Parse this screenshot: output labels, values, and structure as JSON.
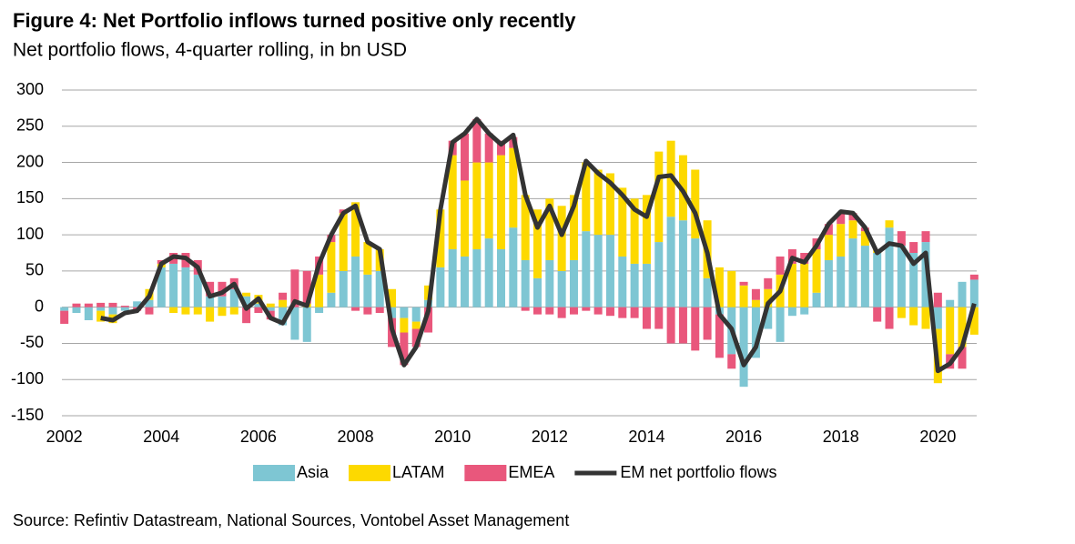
{
  "chart_data": {
    "type": "stacked_bar_line",
    "title": "Figure 4: Net Portfolio inflows turned positive only recently",
    "subtitle": "Net portfolio flows, 4-quarter rolling, in bn USD",
    "source": "Source: Refintiv Datastream, National Sources, Vontobel Asset Management",
    "x": [
      2002,
      2002.25,
      2002.5,
      2002.75,
      2003,
      2003.25,
      2003.5,
      2003.75,
      2004,
      2004.25,
      2004.5,
      2004.75,
      2005,
      2005.25,
      2005.5,
      2005.75,
      2006,
      2006.25,
      2006.5,
      2006.75,
      2007,
      2007.25,
      2007.5,
      2007.75,
      2008,
      2008.25,
      2008.5,
      2008.75,
      2009,
      2009.25,
      2009.5,
      2009.75,
      2010,
      2010.25,
      2010.5,
      2010.75,
      2011,
      2011.25,
      2011.5,
      2011.75,
      2012,
      2012.25,
      2012.5,
      2012.75,
      2013,
      2013.25,
      2013.5,
      2013.75,
      2014,
      2014.25,
      2014.5,
      2014.75,
      2015,
      2015.25,
      2015.5,
      2015.75,
      2016,
      2016.25,
      2016.5,
      2016.75,
      2017,
      2017.25,
      2017.5,
      2017.75,
      2018,
      2018.25,
      2018.5,
      2018.75,
      2019,
      2019.25,
      2019.5,
      2019.75,
      2020,
      2020.25,
      2020.5,
      2020.75
    ],
    "xlim": [
      2001.95,
      2020.8
    ],
    "xticks": [
      2002,
      2004,
      2006,
      2008,
      2010,
      2012,
      2014,
      2016,
      2018,
      2020
    ],
    "ylim": [
      -150,
      300
    ],
    "yticks": [
      -150,
      -100,
      -50,
      0,
      50,
      100,
      150,
      200,
      250,
      300
    ],
    "grid": true,
    "series": [
      {
        "name": "Asia",
        "color": "#7ec6d3",
        "values": [
          -5,
          -8,
          -18,
          -5,
          -10,
          -5,
          8,
          10,
          55,
          60,
          55,
          45,
          15,
          15,
          25,
          15,
          5,
          -5,
          -25,
          -45,
          -48,
          -8,
          20,
          50,
          70,
          45,
          50,
          -15,
          -15,
          -20,
          10,
          55,
          80,
          70,
          80,
          95,
          80,
          110,
          65,
          40,
          65,
          50,
          65,
          105,
          100,
          100,
          70,
          60,
          60,
          90,
          125,
          120,
          95,
          40,
          -10,
          -65,
          -110,
          -70,
          -30,
          -48,
          -12,
          -10,
          20,
          65,
          70,
          95,
          85,
          75,
          110,
          85,
          75,
          90,
          -30,
          10,
          35,
          38
        ]
      },
      {
        "name": "LATAM",
        "color": "#fdd900",
        "values": [
          0,
          0,
          0,
          -15,
          -12,
          0,
          0,
          15,
          5,
          -8,
          -10,
          -10,
          -20,
          -12,
          -10,
          5,
          12,
          5,
          10,
          0,
          5,
          45,
          70,
          80,
          75,
          45,
          30,
          25,
          -20,
          -10,
          20,
          80,
          130,
          105,
          120,
          105,
          130,
          110,
          90,
          95,
          85,
          90,
          90,
          95,
          90,
          85,
          95,
          90,
          95,
          125,
          105,
          90,
          95,
          80,
          55,
          50,
          30,
          10,
          25,
          45,
          60,
          60,
          60,
          35,
          45,
          25,
          20,
          5,
          10,
          -15,
          -25,
          -30,
          -75,
          -65,
          -55,
          -38
        ]
      },
      {
        "name": "EMEA",
        "color": "#e9577c",
        "values": [
          -18,
          5,
          5,
          6,
          6,
          2,
          -5,
          -10,
          5,
          15,
          20,
          20,
          20,
          20,
          15,
          -22,
          -8,
          -12,
          10,
          52,
          45,
          25,
          10,
          5,
          -5,
          -10,
          -8,
          -40,
          -45,
          -25,
          -35,
          0,
          20,
          65,
          60,
          40,
          20,
          15,
          -5,
          -10,
          -10,
          -15,
          -10,
          -5,
          -10,
          -12,
          -15,
          -15,
          -30,
          -30,
          -50,
          -50,
          -60,
          -45,
          -60,
          -20,
          5,
          15,
          15,
          25,
          20,
          15,
          15,
          15,
          15,
          10,
          5,
          -20,
          -30,
          20,
          15,
          15,
          20,
          -20,
          -30,
          7
        ]
      },
      {
        "name": "EM net portfolio flows",
        "type": "line",
        "color": "#333333",
        "values": [
          null,
          null,
          null,
          -15,
          -18,
          -8,
          -5,
          15,
          60,
          70,
          68,
          55,
          15,
          20,
          32,
          -2,
          12,
          -15,
          -22,
          8,
          2,
          60,
          100,
          130,
          140,
          90,
          80,
          -30,
          -80,
          -55,
          -5,
          135,
          228,
          240,
          260,
          240,
          225,
          238,
          155,
          110,
          140,
          100,
          140,
          202,
          185,
          172,
          155,
          135,
          125,
          180,
          182,
          160,
          130,
          75,
          -10,
          -30,
          -80,
          -55,
          5,
          22,
          68,
          62,
          85,
          115,
          132,
          130,
          110,
          75,
          88,
          85,
          60,
          75,
          -88,
          -78,
          -55,
          5
        ]
      }
    ]
  }
}
